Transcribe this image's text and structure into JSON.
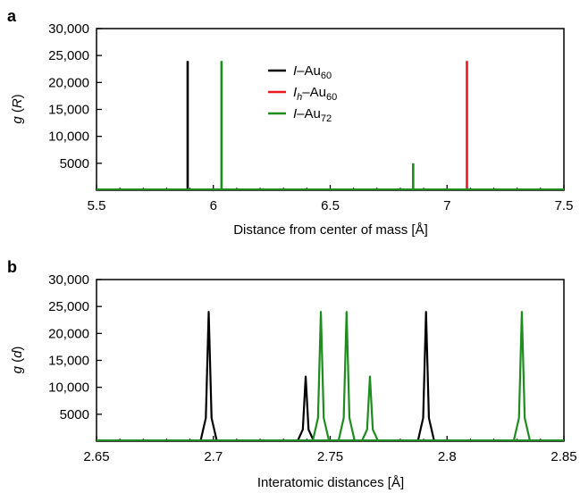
{
  "chart_data": [
    {
      "type": "line",
      "panel": "a",
      "xlabel": "Distance from center of mass [Å]",
      "ylabel_var": "g",
      "ylabel_arg": "R",
      "xlim": [
        5.5,
        7.5
      ],
      "ylim": [
        0,
        30000
      ],
      "x_ticks": [
        "5.5",
        "6",
        "6.5",
        "7",
        "7.5"
      ],
      "y_ticks": [
        "30,000",
        "25,000",
        "20,000",
        "15,000",
        "10,000",
        "5000"
      ],
      "grid": false,
      "legend_placement": "top-center",
      "legend": [
        {
          "prefix": "I",
          "sub_prefix": "",
          "suffix": "–Au",
          "sub_suffix": "60",
          "color": "#000000"
        },
        {
          "prefix": "I",
          "sub_prefix": "h",
          "suffix": "–Au",
          "sub_suffix": "60",
          "color": "#e8191f"
        },
        {
          "prefix": "I",
          "sub_prefix": "",
          "suffix": "–Au",
          "sub_suffix": "72",
          "color": "#1e8c1e"
        }
      ],
      "series": [
        {
          "name": "I–Au60",
          "color": "#000000",
          "peaks": [
            {
              "x": 5.89,
              "y": 24000
            }
          ]
        },
        {
          "name": "Ih–Au60",
          "color": "#e8191f",
          "peaks": [
            {
              "x": 7.085,
              "y": 24000
            }
          ]
        },
        {
          "name": "I–Au72",
          "color": "#1e8c1e",
          "peaks": [
            {
              "x": 6.035,
              "y": 24000
            },
            {
              "x": 6.855,
              "y": 5000
            }
          ]
        }
      ]
    },
    {
      "type": "line",
      "panel": "b",
      "xlabel": "Interatomic distances [Å]",
      "ylabel_var": "g",
      "ylabel_arg": "d",
      "xlim": [
        2.65,
        2.85
      ],
      "ylim": [
        0,
        30000
      ],
      "x_ticks": [
        "2.65",
        "2.7",
        "2.75",
        "2.8",
        "2.85"
      ],
      "y_ticks": [
        "30,000",
        "25,000",
        "20,000",
        "15,000",
        "10,000",
        "5000"
      ],
      "grid": false,
      "series": [
        {
          "name": "I–Au60",
          "color": "#000000",
          "peaks": [
            {
              "x": 2.698,
              "y": 24000
            },
            {
              "x": 2.7395,
              "y": 12000
            },
            {
              "x": 2.791,
              "y": 24000
            }
          ]
        },
        {
          "name": "I–Au72",
          "color": "#1e8c1e",
          "peaks": [
            {
              "x": 2.746,
              "y": 24000
            },
            {
              "x": 2.757,
              "y": 24000
            },
            {
              "x": 2.767,
              "y": 12000
            },
            {
              "x": 2.832,
              "y": 24000
            }
          ]
        }
      ]
    }
  ]
}
